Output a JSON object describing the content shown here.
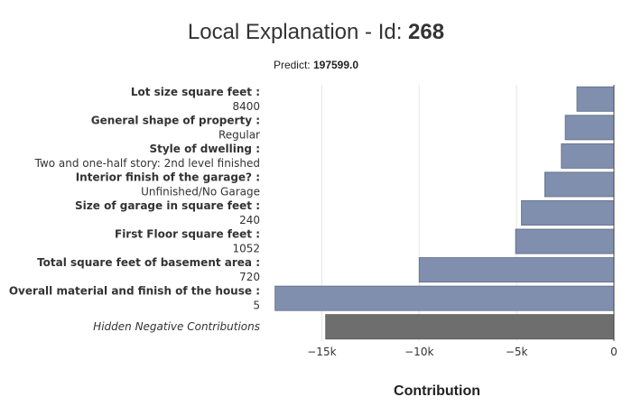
{
  "header": {
    "title_prefix": "Local Explanation - Id: ",
    "id": "268",
    "predict_label": "Predict: ",
    "predict_value": "197599.0"
  },
  "chart_data": {
    "type": "bar",
    "orientation": "horizontal",
    "xlabel": "Contribution",
    "xlim": [
      -17800,
      0
    ],
    "xticks": [
      -15000,
      -10000,
      -5000,
      0
    ],
    "xtick_labels": [
      "−15k",
      "−10k",
      "−5k",
      "0"
    ],
    "grid": true,
    "colors": {
      "feature": "#7f8fad",
      "hidden": "#6e6e6e"
    },
    "bars": [
      {
        "feature": "Lot size square feet :",
        "value_label": "8400",
        "contribution": -1900
      },
      {
        "feature": "General shape of property :",
        "value_label": "Regular",
        "contribution": -2500
      },
      {
        "feature": "Style of dwelling :",
        "value_label": "Two and one-half story: 2nd level finished",
        "contribution": -2700
      },
      {
        "feature": "Interior finish of the garage? :",
        "value_label": "Unfinished/No Garage",
        "contribution": -3550
      },
      {
        "feature": "Size of garage in square feet :",
        "value_label": "240",
        "contribution": -4750
      },
      {
        "feature": "First Floor square feet :",
        "value_label": "1052",
        "contribution": -5050
      },
      {
        "feature": "Total square feet of basement area :",
        "value_label": "720",
        "contribution": -10000
      },
      {
        "feature": "Overall material and finish of the house :",
        "value_label": "5",
        "contribution": -17400
      },
      {
        "feature": "Hidden Negative Contributions",
        "value_label": "",
        "contribution": -14800,
        "hidden": true
      }
    ]
  }
}
